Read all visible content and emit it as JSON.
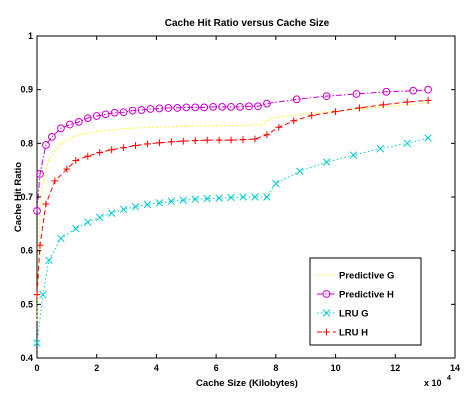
{
  "chart_data": {
    "type": "line",
    "title": "Cache Hit Ratio versus Cache Size",
    "xlabel": "Cache Size (Kilobytes)",
    "ylabel": "Cache Hit Ratio",
    "x_exponent_base": "x 10",
    "x_exponent_power": "4",
    "xlim": [
      0,
      140000
    ],
    "ylim": [
      0.4,
      1.0
    ],
    "x_ticks": [
      0,
      20000,
      40000,
      60000,
      80000,
      100000,
      120000,
      140000
    ],
    "x_tick_labels": [
      "0",
      "2",
      "4",
      "6",
      "8",
      "10",
      "12",
      "14"
    ],
    "y_ticks": [
      0.4,
      0.5,
      0.6,
      0.7,
      0.8,
      0.9,
      1.0
    ],
    "y_tick_labels": [
      "0.4",
      "0.5",
      "0.6",
      "0.7",
      "0.8",
      "0.9",
      "1"
    ],
    "grid": false,
    "legend_position": "bottom-right",
    "series": [
      {
        "name": "Predictive G",
        "color": "#ffff00",
        "line_style": "dotted",
        "marker": "none",
        "x": [
          0,
          1000,
          2000,
          4000,
          8000,
          12000,
          16000,
          20000,
          30000,
          40000,
          50000,
          60000,
          70000,
          75000,
          77000,
          80000,
          90000,
          100000,
          110000,
          120000,
          131000
        ],
        "y": [
          0.47,
          0.68,
          0.73,
          0.77,
          0.8,
          0.812,
          0.818,
          0.822,
          0.828,
          0.83,
          0.832,
          0.833,
          0.833,
          0.835,
          0.842,
          0.848,
          0.855,
          0.86,
          0.865,
          0.87,
          0.875
        ]
      },
      {
        "name": "Predictive H",
        "color": "#cc00cc",
        "line_style": "dashdot",
        "marker": "circle",
        "x": [
          0,
          1000,
          3000,
          5000,
          8000,
          11000,
          14000,
          17000,
          20000,
          23000,
          26000,
          29000,
          32000,
          35000,
          38000,
          41000,
          44000,
          47000,
          50000,
          53000,
          56000,
          59000,
          62000,
          65000,
          68000,
          71000,
          74000,
          77000,
          87000,
          97000,
          107000,
          117000,
          126000,
          131000
        ],
        "y": [
          0.674,
          0.743,
          0.797,
          0.812,
          0.828,
          0.835,
          0.84,
          0.847,
          0.851,
          0.854,
          0.857,
          0.858,
          0.861,
          0.862,
          0.864,
          0.865,
          0.866,
          0.866,
          0.867,
          0.867,
          0.867,
          0.868,
          0.868,
          0.868,
          0.868,
          0.869,
          0.869,
          0.874,
          0.882,
          0.888,
          0.892,
          0.896,
          0.898,
          0.9
        ]
      },
      {
        "name": "LRU G",
        "color": "#00cccc",
        "line_style": "dotted",
        "marker": "x",
        "x": [
          0,
          2000,
          4000,
          8000,
          13000,
          17000,
          21000,
          25000,
          29000,
          33000,
          37000,
          41000,
          45000,
          49000,
          53000,
          57000,
          61000,
          65000,
          69000,
          73000,
          77000,
          80000,
          88000,
          97000,
          106000,
          115000,
          124000,
          131000
        ],
        "y": [
          0.428,
          0.518,
          0.582,
          0.623,
          0.641,
          0.653,
          0.662,
          0.67,
          0.677,
          0.682,
          0.686,
          0.689,
          0.692,
          0.694,
          0.696,
          0.697,
          0.698,
          0.699,
          0.7,
          0.7,
          0.7,
          0.725,
          0.748,
          0.765,
          0.778,
          0.79,
          0.8,
          0.81
        ]
      },
      {
        "name": "LRU H",
        "color": "#ff0000",
        "line_style": "dashed",
        "marker": "plus",
        "x": [
          0,
          1000,
          3000,
          6000,
          10000,
          13000,
          17000,
          21000,
          25000,
          29000,
          33000,
          37000,
          41000,
          45000,
          49000,
          53000,
          57000,
          61000,
          65000,
          69000,
          73000,
          77000,
          81000,
          86000,
          92000,
          100000,
          108000,
          116000,
          124000,
          131000
        ],
        "y": [
          0.518,
          0.61,
          0.687,
          0.73,
          0.752,
          0.768,
          0.776,
          0.783,
          0.788,
          0.792,
          0.796,
          0.799,
          0.801,
          0.803,
          0.804,
          0.805,
          0.806,
          0.806,
          0.806,
          0.807,
          0.808,
          0.816,
          0.83,
          0.842,
          0.852,
          0.859,
          0.866,
          0.872,
          0.877,
          0.88
        ]
      }
    ]
  }
}
